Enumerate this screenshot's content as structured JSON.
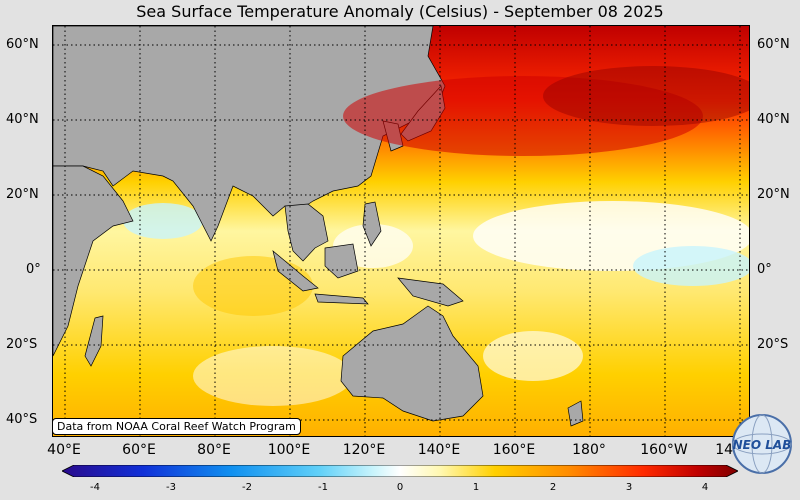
{
  "title": "Sea Surface Temperature Anomaly (Celsius) - September 08 2025",
  "credit": "Data from NOAA Coral Reef Watch Program",
  "logo_text": "NEO LAB",
  "lat_labels": [
    "60°N",
    "40°N",
    "20°N",
    "0°",
    "20°S",
    "40°S"
  ],
  "lon_labels": [
    "40°E",
    "60°E",
    "80°E",
    "100°E",
    "120°E",
    "140°E",
    "160°E",
    "180°",
    "160°W",
    "140°W"
  ],
  "colorbar": {
    "ticks": [
      "-4",
      "-3",
      "-2",
      "-1",
      "0",
      "1",
      "2",
      "3",
      "4"
    ],
    "range": [
      -4,
      4
    ],
    "colors": [
      "#2a0a8c",
      "#1030d8",
      "#1090f0",
      "#60d0f8",
      "#c8f4fc",
      "#ffffff",
      "#fff8b0",
      "#ffd000",
      "#ff8c00",
      "#ff2a00",
      "#c00000",
      "#800000"
    ]
  },
  "colors": {
    "land": "#a8a8a8",
    "ocean_warm": "#ffe040",
    "ocean_hot": "#ff3000",
    "ocean_cool": "#d0f4ff",
    "grid": "#000000"
  }
}
